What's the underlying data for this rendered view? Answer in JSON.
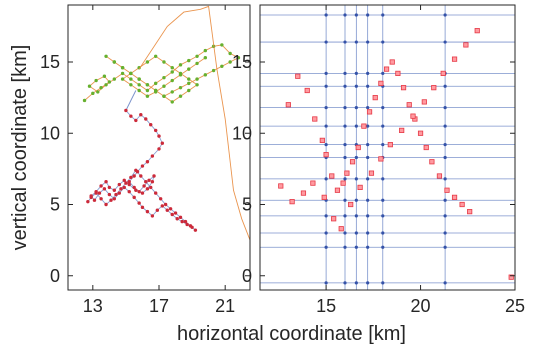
{
  "chart_data": [
    {
      "type": "line",
      "panel": "left",
      "title": "",
      "ylabel": "vertical coordinate [km]",
      "xlim": [
        11.5,
        22.5
      ],
      "ylim": [
        -1,
        19
      ],
      "xticks": [
        13,
        17,
        21
      ],
      "yticks": [
        0,
        5,
        10,
        15
      ],
      "grid": false,
      "colors": {
        "red_track": "#cc2a3a",
        "green_track": "#66b02e",
        "orange_link": "#e88a3c",
        "blue_link": "#7c93cc"
      },
      "series": [
        {
          "color": "red",
          "x": [
            15.0,
            15.3,
            15.6,
            15.9,
            16.2,
            16.5,
            16.8,
            17.0,
            17.2,
            17.0,
            16.6,
            16.3,
            16.0,
            15.7,
            15.5,
            15.2,
            15.5,
            15.8,
            16.1,
            16.4,
            16.7,
            16.6,
            16.3,
            16.0,
            15.6,
            15.2,
            14.9,
            14.6,
            14.3,
            14.0,
            13.8,
            13.5,
            13.2,
            12.9,
            13.1,
            13.4,
            13.7,
            14.0,
            14.3,
            14.6,
            14.9,
            15.2,
            15.5,
            15.8,
            16.0,
            16.3,
            16.6,
            16.9,
            17.2,
            17.5,
            17.8,
            18.1,
            18.4,
            18.7,
            19.0,
            19.2,
            18.9,
            18.6,
            18.3,
            18.0,
            17.7,
            17.4,
            17.1,
            16.8,
            16.5,
            16.2,
            15.9,
            15.6,
            15.3,
            15.0,
            14.7,
            14.4,
            14.1,
            13.8,
            13.5,
            13.2,
            12.9,
            12.7
          ],
          "y": [
            11.6,
            11.2,
            10.9,
            11.3,
            11.0,
            10.6,
            10.2,
            9.8,
            9.3,
            8.9,
            8.4,
            8.0,
            7.7,
            7.3,
            7.0,
            6.6,
            6.2,
            5.9,
            6.3,
            6.7,
            7.0,
            6.6,
            6.1,
            5.8,
            6.0,
            6.4,
            6.7,
            6.4,
            6.0,
            6.2,
            6.6,
            6.3,
            5.9,
            5.6,
            5.3,
            5.8,
            6.1,
            5.7,
            5.4,
            5.8,
            6.2,
            5.9,
            5.5,
            5.1,
            4.8,
            4.5,
            4.2,
            4.6,
            4.9,
            4.6,
            4.3,
            4.0,
            3.8,
            3.6,
            3.4,
            3.2,
            3.5,
            3.8,
            4.1,
            4.4,
            4.7,
            5.0,
            5.4,
            5.8,
            6.2,
            6.6,
            7.0,
            7.4,
            6.9,
            6.5,
            6.1,
            5.7,
            5.3,
            5.0,
            5.4,
            5.8,
            5.5,
            5.2
          ]
        },
        {
          "color": "green",
          "x": [
            12.5,
            13.0,
            13.5,
            14.0,
            13.7,
            13.2,
            12.8,
            13.3,
            13.8,
            14.3,
            14.8,
            15.3,
            15.8,
            16.3,
            16.8,
            17.3,
            17.8,
            18.3,
            18.8,
            19.3,
            19.8,
            20.3,
            20.8,
            21.3,
            21.8,
            21.3,
            20.8,
            20.3,
            19.8,
            19.3,
            18.8,
            18.3,
            17.8,
            17.3,
            16.8,
            16.3,
            15.8,
            15.3,
            14.8,
            14.3,
            13.8,
            14.3,
            14.8,
            15.3,
            15.8,
            16.3,
            16.8,
            17.3,
            17.8,
            18.3,
            18.8,
            19.3,
            18.8,
            18.3,
            17.8,
            17.3,
            16.8,
            16.3,
            15.8,
            15.3,
            14.8,
            15.3,
            15.8,
            16.3,
            16.8,
            17.3,
            17.8,
            18.3,
            18.8,
            19.3,
            19.8
          ],
          "y": [
            12.3,
            12.8,
            13.2,
            13.6,
            14.0,
            13.7,
            13.3,
            12.9,
            13.4,
            13.8,
            14.2,
            13.8,
            13.4,
            13.0,
            13.5,
            13.9,
            14.3,
            14.8,
            15.1,
            15.4,
            15.8,
            16.1,
            16.2,
            15.6,
            15.3,
            15.0,
            14.7,
            14.4,
            14.1,
            13.8,
            13.5,
            13.2,
            12.9,
            12.6,
            13.0,
            13.4,
            13.8,
            14.2,
            14.6,
            15.0,
            15.4,
            15.0,
            14.6,
            14.2,
            13.8,
            13.4,
            13.0,
            12.6,
            12.2,
            12.6,
            13.0,
            13.4,
            13.8,
            14.2,
            14.6,
            15.0,
            15.4,
            15.0,
            14.6,
            14.2,
            13.8,
            13.4,
            13.0,
            12.6,
            12.9,
            13.3,
            13.7,
            14.1,
            14.5,
            14.9,
            15.3
          ]
        },
        {
          "color": "orange",
          "x": [
            15.8,
            17.5,
            18.5,
            19.5,
            20.0,
            20.5,
            21.0,
            21.5,
            22.0,
            22.5
          ],
          "y": [
            14.5,
            17.5,
            18.5,
            18.7,
            18.9,
            14.5,
            11.0,
            6.0,
            4.0,
            2.5
          ]
        }
      ]
    },
    {
      "type": "scatter",
      "panel": "right",
      "title": "",
      "xlim": [
        11.5,
        25
      ],
      "ylim": [
        -1,
        19
      ],
      "xticks": [
        15,
        20,
        25
      ],
      "yticks": [
        0,
        5,
        10,
        15
      ],
      "grid": true,
      "grid_lines": {
        "vertical": [
          15,
          16,
          16.6,
          17.2,
          18,
          21.3
        ],
        "horizontal": [
          -0.5,
          2,
          3,
          4.2,
          5.3,
          6.8,
          8.3,
          9.2,
          10.5,
          11.8,
          13.3,
          14.2,
          16.4,
          18.3
        ]
      },
      "colors": {
        "marker": "#e63946",
        "grid_line": "#7c93cc",
        "grid_node": "#3552a8"
      },
      "x": [
        13.0,
        13.5,
        14.0,
        14.4,
        14.8,
        15.0,
        15.3,
        15.6,
        15.9,
        16.1,
        16.4,
        16.7,
        17.0,
        17.3,
        17.6,
        17.9,
        18.2,
        18.5,
        18.8,
        19.1,
        19.4,
        19.7,
        20.0,
        20.3,
        20.6,
        21.0,
        21.4,
        21.8,
        22.2,
        22.6,
        12.6,
        13.2,
        13.8,
        14.3,
        14.9,
        15.4,
        15.8,
        16.3,
        16.8,
        17.4,
        17.9,
        18.4,
        19.0,
        19.6,
        20.2,
        20.7,
        21.2,
        21.8,
        22.4,
        23.0,
        24.8
      ],
      "y": [
        12.0,
        14.0,
        13.0,
        11.0,
        9.5,
        8.5,
        7.0,
        6.0,
        6.5,
        7.2,
        8.0,
        9.0,
        10.5,
        11.5,
        12.5,
        13.5,
        14.5,
        15.0,
        14.2,
        13.2,
        12.0,
        11.0,
        10.0,
        9.0,
        8.0,
        7.0,
        6.0,
        5.5,
        5.0,
        4.5,
        6.3,
        5.2,
        5.8,
        6.5,
        5.5,
        4.0,
        3.3,
        5.0,
        6.2,
        7.2,
        8.2,
        9.2,
        10.2,
        11.2,
        12.2,
        13.2,
        14.2,
        15.2,
        16.2,
        17.2,
        -0.1
      ]
    }
  ],
  "figure": {
    "xlabel": "horizontal coordinate [km]"
  }
}
